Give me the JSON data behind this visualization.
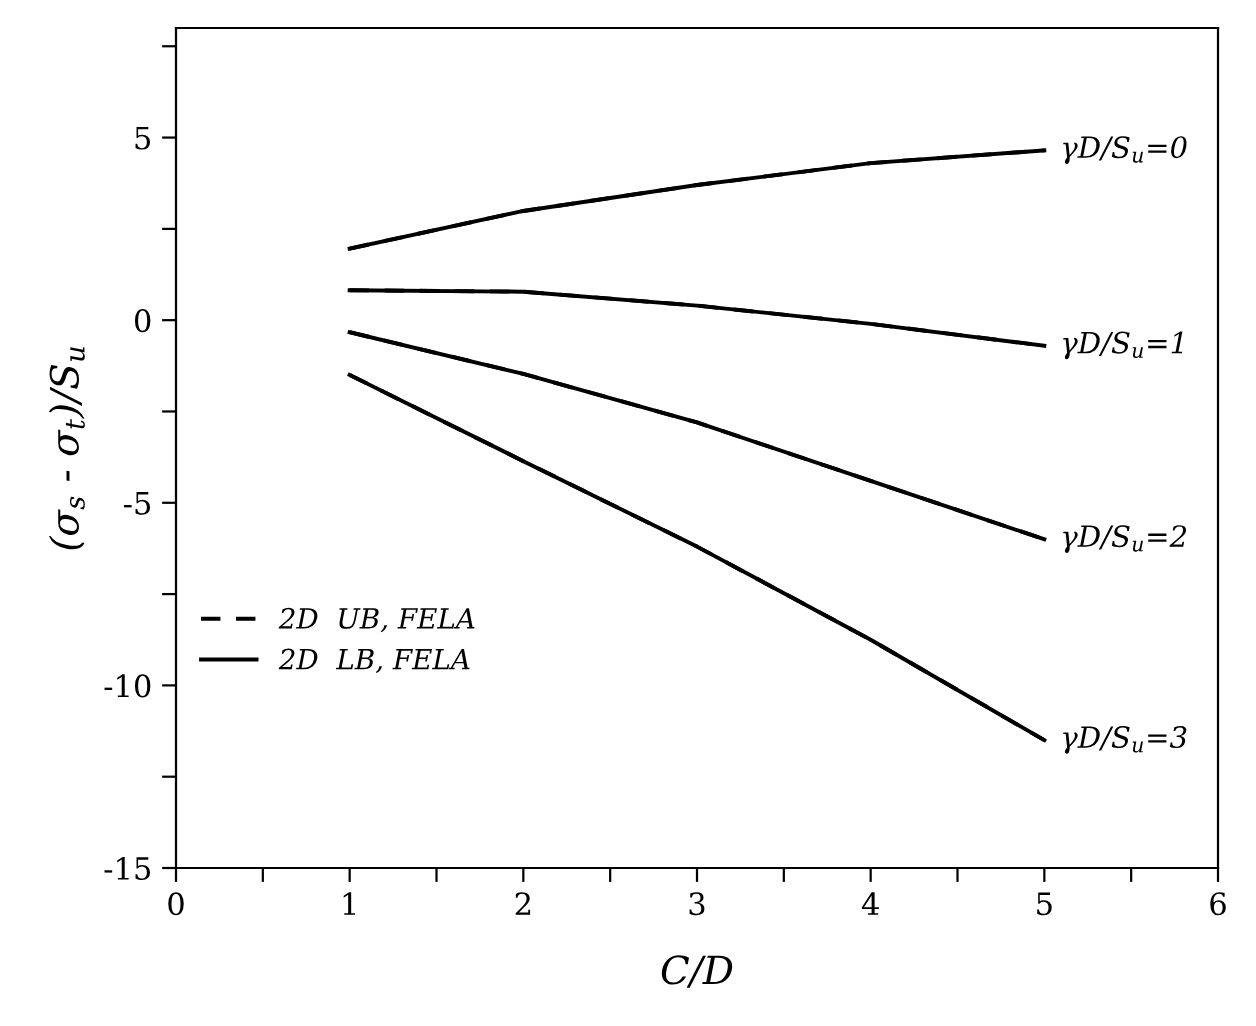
{
  "chart_data": {
    "type": "line",
    "xlabel": "C/D",
    "ylabel": "(σ$_{s}$ - σ$_{t}$)/S$_{u}$",
    "x": [
      1,
      2,
      3,
      4,
      5
    ],
    "series": [
      {
        "name": "2D  UB, FELA",
        "color": "#000000",
        "line_style": "dashed",
        "values": [
          1.96,
          2.99,
          3.7,
          4.3,
          4.65
        ]
      },
      {
        "name": "2D  LB, FELA",
        "color": "#000000",
        "line_style": "solid",
        "values": [
          1.96,
          2.99,
          3.7,
          4.3,
          4.65
        ]
      },
      {
        "color": "#000000",
        "line_style": "dashed",
        "values": [
          0.82,
          0.78,
          0.4,
          -0.1,
          -0.7
        ]
      },
      {
        "color": "#000000",
        "line_style": "solid",
        "values": [
          0.82,
          0.78,
          0.4,
          -0.1,
          -0.7
        ]
      },
      {
        "color": "#000000",
        "line_style": "dashed",
        "values": [
          -0.33,
          -1.47,
          -2.8,
          -4.4,
          -6.0
        ]
      },
      {
        "color": "#000000",
        "line_style": "solid",
        "values": [
          -0.33,
          -1.47,
          -2.8,
          -4.4,
          -6.0
        ]
      },
      {
        "color": "#000000",
        "line_style": "dashed",
        "values": [
          -1.5,
          -3.86,
          -6.2,
          -8.75,
          -11.5
        ]
      },
      {
        "color": "#000000",
        "line_style": "solid",
        "values": [
          -1.5,
          -3.86,
          -6.2,
          -8.75,
          -11.5
        ]
      }
    ],
    "annotations": [
      "γD/S$_{u}$=0",
      "γD/S$_{u}$=1",
      "γD/S$_{u}$=2",
      "γD/S$_{u}$=3"
    ],
    "xlim": [
      0,
      6
    ],
    "xticks": [
      0,
      {
        "value": 0.5,
        "label": null
      },
      1,
      {
        "value": 1.5,
        "label": null
      },
      2,
      {
        "value": 2.5,
        "label": null
      },
      3,
      {
        "value": 3.5,
        "label": null
      },
      4,
      {
        "value": 4.5,
        "label": null
      },
      5,
      {
        "value": 5.5,
        "label": null
      },
      6
    ],
    "ylim": [
      -15,
      8
    ],
    "yticks": [
      -15,
      {
        "value": -12.5,
        "label": null
      },
      -10,
      {
        "value": -7.5,
        "label": null
      },
      -5,
      {
        "value": -2.5,
        "label": null
      },
      0,
      {
        "value": 2.5,
        "label": null
      },
      5,
      {
        "value": 7.5,
        "label": null
      }
    ],
    "grid": false,
    "legend": "bottom left",
    "marker": "none"
  }
}
